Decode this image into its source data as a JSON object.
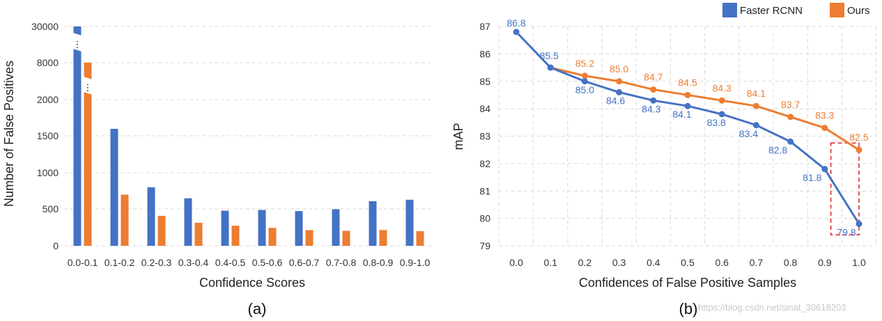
{
  "chart_data": [
    {
      "type": "bar",
      "title": "",
      "xlabel": "Confidence Scores",
      "ylabel": "Number of False Positives",
      "caption": "(a)",
      "categories": [
        "0.0-0.1",
        "0.1-0.2",
        "0.2-0.3",
        "0.3-0.4",
        "0.4-0.5",
        "0.5-0.6",
        "0.6-0.7",
        "0.7-0.8",
        "0.8-0.9",
        "0.9-1.0"
      ],
      "y_tick_labels": [
        "0",
        "500",
        "1000",
        "1500",
        "2000",
        "8000",
        "30000"
      ],
      "axis_note": "broken y-axis: 0-2000 linear, then 8000 and 30000",
      "series": [
        {
          "name": "Faster RCNN",
          "values": [
            30000,
            1600,
            800,
            650,
            480,
            490,
            475,
            500,
            610,
            630
          ]
        },
        {
          "name": "Ours",
          "values": [
            8000,
            700,
            410,
            315,
            275,
            245,
            215,
            205,
            215,
            200
          ]
        }
      ],
      "grid": true
    },
    {
      "type": "line",
      "title": "",
      "xlabel": "Confidences of False Positive Samples",
      "ylabel": "mAP",
      "caption": "(b)",
      "x": [
        0.0,
        0.1,
        0.2,
        0.3,
        0.4,
        0.5,
        0.6,
        0.7,
        0.8,
        0.9,
        1.0
      ],
      "x_tick_labels": [
        "0.0",
        "0.1",
        "0.2",
        "0.3",
        "0.4",
        "0.5",
        "0.6",
        "0.7",
        "0.8",
        "0.9",
        "1.0"
      ],
      "ylim": [
        79,
        87
      ],
      "y_tick_labels": [
        "79",
        "80",
        "81",
        "82",
        "83",
        "84",
        "85",
        "86",
        "87"
      ],
      "series": [
        {
          "name": "Faster RCNN",
          "x": [
            0.0,
            0.1,
            0.2,
            0.3,
            0.4,
            0.5,
            0.6,
            0.7,
            0.8,
            0.9,
            1.0
          ],
          "values": [
            86.8,
            85.5,
            85.0,
            84.6,
            84.3,
            84.1,
            83.8,
            83.4,
            82.8,
            81.8,
            79.8
          ],
          "labels": [
            "86.8",
            "85.5",
            "85.0",
            "84.6",
            "84.3",
            "84.1",
            "83.8",
            "83.4",
            "82.8",
            "81.8",
            "79.8"
          ]
        },
        {
          "name": "Ours",
          "x": [
            0.1,
            0.2,
            0.3,
            0.4,
            0.5,
            0.6,
            0.7,
            0.8,
            0.9,
            1.0
          ],
          "values": [
            85.5,
            85.2,
            85.0,
            84.7,
            84.5,
            84.3,
            84.1,
            83.7,
            83.3,
            82.5
          ],
          "labels": [
            "",
            "85.2",
            "85.0",
            "84.7",
            "84.5",
            "84.3",
            "84.1",
            "83.7",
            "83.3",
            "82.5"
          ]
        }
      ],
      "legend": {
        "placement": "top-right",
        "entries": [
          "Faster RCNN",
          "Ours"
        ]
      },
      "highlight_box": {
        "x_range": [
          0.8,
          1.0
        ],
        "y_range": [
          79.4,
          82.8
        ]
      },
      "grid": true
    }
  ],
  "colors": {
    "faster_rcnn": "#4472c4",
    "ours": "#ed7d31",
    "grid": "#d9d9d9",
    "highlight": "#e02020"
  },
  "watermark": "https://blog.csdn.net/sinat_30618203"
}
